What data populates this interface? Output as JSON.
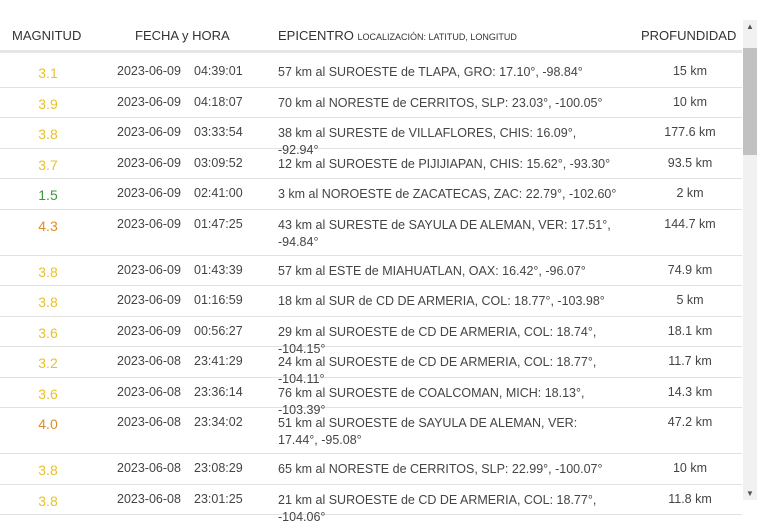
{
  "header": {
    "magnitude": "MAGNITUD",
    "datetime": "FECHA y HORA",
    "epicenter": "EPICENTRO",
    "epicenter_sub": "LOCALIZACIÓN: LATITUD, LONGITUD",
    "depth": "PROFUNDIDAD"
  },
  "colors": {
    "low": "#3a9a3a",
    "medium": "#e8c22a",
    "high": "#e08c2a"
  },
  "rows": [
    {
      "mag": "3.1",
      "date": "2023-06-09",
      "time": "04:39:01",
      "epi": "57 km al SUROESTE de TLAPA, GRO: 17.10°, -98.84°",
      "depth": "15 km",
      "level": "medium"
    },
    {
      "mag": "3.9",
      "date": "2023-06-09",
      "time": "04:18:07",
      "epi": "70 km al NORESTE de CERRITOS, SLP: 23.03°, -100.05°",
      "depth": "10 km",
      "level": "medium"
    },
    {
      "mag": "3.8",
      "date": "2023-06-09",
      "time": "03:33:54",
      "epi": "38 km al SURESTE de VILLAFLORES, CHIS: 16.09°, -92.94°",
      "depth": "177.6 km",
      "level": "medium"
    },
    {
      "mag": "3.7",
      "date": "2023-06-09",
      "time": "03:09:52",
      "epi": "12 km al SUROESTE de PIJIJIAPAN, CHIS: 15.62°, -93.30°",
      "depth": "93.5 km",
      "level": "medium"
    },
    {
      "mag": "1.5",
      "date": "2023-06-09",
      "time": "02:41:00",
      "epi": "3 km al NOROESTE de ZACATECAS, ZAC: 22.79°, -102.60°",
      "depth": "2 km",
      "level": "low"
    },
    {
      "mag": "4.3",
      "date": "2023-06-09",
      "time": "01:47:25",
      "epi": "43 km al SURESTE de SAYULA DE ALEMAN, VER: 17.51°, -94.84°",
      "depth": "144.7 km",
      "level": "high"
    },
    {
      "mag": "3.8",
      "date": "2023-06-09",
      "time": "01:43:39",
      "epi": "57 km al ESTE de MIAHUATLAN, OAX: 16.42°, -96.07°",
      "depth": "74.9 km",
      "level": "medium"
    },
    {
      "mag": "3.8",
      "date": "2023-06-09",
      "time": "01:16:59",
      "epi": "18 km al SUR de CD DE ARMERIA, COL: 18.77°, -103.98°",
      "depth": "5 km",
      "level": "medium"
    },
    {
      "mag": "3.6",
      "date": "2023-06-09",
      "time": "00:56:27",
      "epi": "29 km al SUROESTE de CD DE ARMERIA, COL: 18.74°, -104.15°",
      "depth": "18.1 km",
      "level": "medium"
    },
    {
      "mag": "3.2",
      "date": "2023-06-08",
      "time": "23:41:29",
      "epi": "24 km al SUROESTE de CD DE ARMERIA, COL: 18.77°, -104.11°",
      "depth": "11.7 km",
      "level": "medium"
    },
    {
      "mag": "3.6",
      "date": "2023-06-08",
      "time": "23:36:14",
      "epi": "76 km al SUROESTE de COALCOMAN, MICH: 18.13°, -103.39°",
      "depth": "14.3 km",
      "level": "medium"
    },
    {
      "mag": "4.0",
      "date": "2023-06-08",
      "time": "23:34:02",
      "epi": "51 km al SUROESTE de SAYULA DE ALEMAN, VER: 17.44°, -95.08°",
      "depth": "47.2 km",
      "level": "high"
    },
    {
      "mag": "3.8",
      "date": "2023-06-08",
      "time": "23:08:29",
      "epi": "65 km al NORESTE de CERRITOS, SLP: 22.99°, -100.07°",
      "depth": "10 km",
      "level": "medium"
    },
    {
      "mag": "3.8",
      "date": "2023-06-08",
      "time": "23:01:25",
      "epi": "21 km al SUROESTE de CD DE ARMERIA, COL: 18.77°, -104.06°",
      "depth": "11.8 km",
      "level": "medium"
    }
  ]
}
